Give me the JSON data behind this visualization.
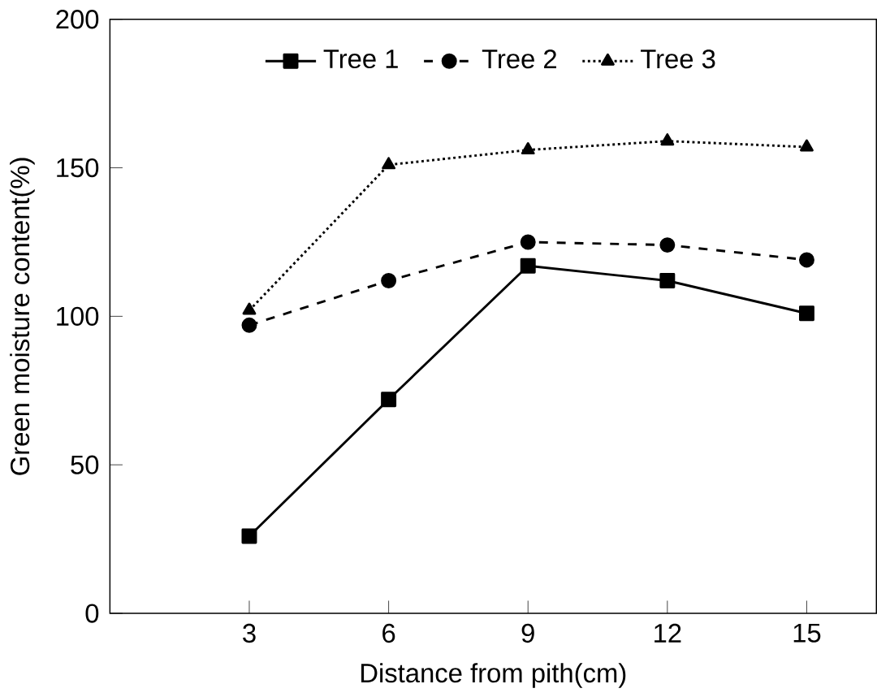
{
  "chart_data": {
    "type": "line",
    "xlabel": "Distance from pith(cm)",
    "ylabel": "Green moisture content(%)",
    "x": [
      3,
      6,
      9,
      12,
      15
    ],
    "xlim": [
      0,
      16.5
    ],
    "xticks": [
      3,
      6,
      9,
      12,
      15
    ],
    "ylim": [
      0,
      200
    ],
    "yticks": [
      0,
      50,
      100,
      150,
      200
    ],
    "legend": "top",
    "grid": false,
    "series": [
      {
        "name": "Tree 1",
        "color": "#000000",
        "marker": "square",
        "line_style": "solid",
        "values": [
          26,
          72,
          117,
          112,
          101
        ]
      },
      {
        "name": "Tree 2",
        "color": "#000000",
        "marker": "circle",
        "line_style": "dashed",
        "values": [
          97,
          112,
          125,
          124,
          119
        ]
      },
      {
        "name": "Tree 3",
        "color": "#000000",
        "marker": "triangle",
        "line_style": "dotted",
        "values": [
          102,
          151,
          156,
          159,
          157
        ]
      }
    ]
  }
}
